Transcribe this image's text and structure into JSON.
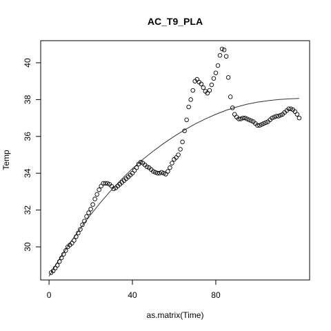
{
  "chart_data": {
    "type": "scatter",
    "title": "AC_T9_PLA",
    "xlabel": "as.matrix(Time)",
    "ylabel": "Temp",
    "xlim": [
      -4,
      125
    ],
    "ylim": [
      28.2,
      41.2
    ],
    "xticks": [
      0,
      40,
      80
    ],
    "yticks": [
      30,
      32,
      34,
      36,
      38,
      40
    ],
    "grid": false,
    "legend": "none",
    "series": [
      {
        "marker": "open-circle",
        "x": [
          1,
          2,
          3,
          4,
          5,
          6,
          7,
          8,
          9,
          10,
          11,
          12,
          13,
          14,
          15,
          16,
          17,
          18,
          19,
          20,
          21,
          22,
          23,
          24,
          25,
          26,
          27,
          28,
          29,
          30,
          31,
          32,
          33,
          34,
          35,
          36,
          37,
          38,
          39,
          40,
          41,
          42,
          43,
          44,
          45,
          46,
          47,
          48,
          49,
          50,
          51,
          52,
          53,
          54,
          55,
          56,
          57,
          58,
          59,
          60,
          61,
          62,
          63,
          64,
          65,
          66,
          67,
          68,
          69,
          70,
          71,
          72,
          73,
          74,
          75,
          76,
          77,
          78,
          79,
          80,
          81,
          82,
          83,
          84,
          85,
          86,
          87,
          88,
          89,
          90,
          91,
          92,
          93,
          94,
          95,
          96,
          97,
          98,
          99,
          100,
          101,
          102,
          103,
          104,
          105,
          106,
          107,
          108,
          109,
          110,
          111,
          112,
          113,
          114,
          115,
          116,
          117,
          118,
          119,
          120
        ],
        "y": [
          28.6,
          28.7,
          28.85,
          29.0,
          29.2,
          29.4,
          29.6,
          29.8,
          30.0,
          30.1,
          30.2,
          30.35,
          30.55,
          30.75,
          30.95,
          31.2,
          31.4,
          31.65,
          31.85,
          32.05,
          32.3,
          32.6,
          32.85,
          33.1,
          33.3,
          33.45,
          33.45,
          33.45,
          33.4,
          33.3,
          33.15,
          33.2,
          33.3,
          33.4,
          33.5,
          33.6,
          33.7,
          33.8,
          33.9,
          34.0,
          34.15,
          34.3,
          34.5,
          34.6,
          34.55,
          34.45,
          34.35,
          34.3,
          34.2,
          34.1,
          34.05,
          34.0,
          34.0,
          34.05,
          34.0,
          33.95,
          34.1,
          34.3,
          34.55,
          34.75,
          34.85,
          35.0,
          35.3,
          35.7,
          36.3,
          36.9,
          37.6,
          38.0,
          38.5,
          39.0,
          39.1,
          38.95,
          38.85,
          38.65,
          38.45,
          38.35,
          38.5,
          38.8,
          39.15,
          39.45,
          39.85,
          40.4,
          40.75,
          40.7,
          40.35,
          39.2,
          38.15,
          37.55,
          37.2,
          37.05,
          36.95,
          36.95,
          37.0,
          37.0,
          36.95,
          36.9,
          36.85,
          36.8,
          36.7,
          36.6,
          36.6,
          36.65,
          36.7,
          36.75,
          36.8,
          36.9,
          37.0,
          37.05,
          37.1,
          37.1,
          37.15,
          37.2,
          37.3,
          37.4,
          37.5,
          37.5,
          37.45,
          37.35,
          37.2,
          37.0
        ]
      }
    ],
    "fit_curve": {
      "style": "line",
      "x": [
        0,
        5,
        10,
        15,
        20,
        25,
        30,
        35,
        40,
        45,
        50,
        55,
        60,
        65,
        70,
        75,
        80,
        85,
        90,
        95,
        100,
        105,
        110,
        115,
        120
      ],
      "y": [
        28.4,
        29.35,
        30.2,
        31.0,
        31.75,
        32.45,
        33.1,
        33.7,
        34.25,
        34.75,
        35.2,
        35.62,
        36.0,
        36.35,
        36.67,
        36.95,
        37.2,
        37.42,
        37.6,
        37.75,
        37.86,
        37.94,
        38.0,
        38.04,
        38.06
      ]
    }
  }
}
